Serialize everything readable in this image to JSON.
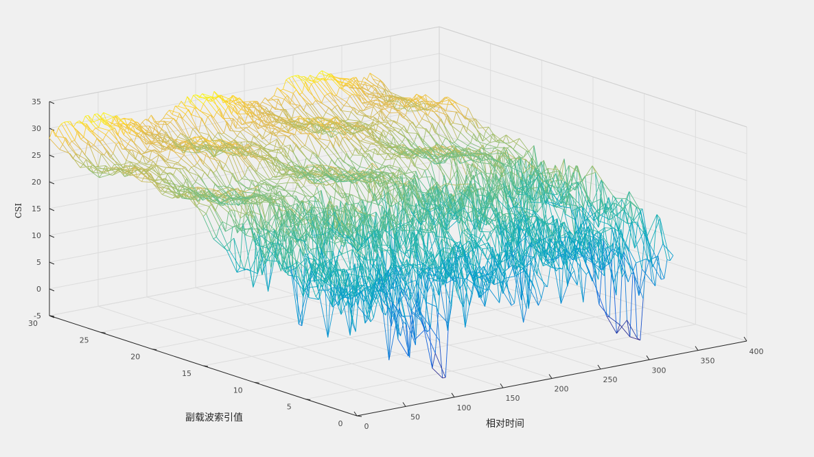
{
  "chart_data": {
    "type": "mesh",
    "xlabel": "相对时间",
    "ylabel": "副载波索引值",
    "zlabel": "CSI",
    "xlim": [
      0,
      400
    ],
    "ylim": [
      0,
      30
    ],
    "zlim": [
      -5,
      35
    ],
    "x_ticks": [
      "0",
      "50",
      "100",
      "150",
      "200",
      "250",
      "300",
      "350",
      "400"
    ],
    "y_ticks": [
      "0",
      "5",
      "10",
      "15",
      "20",
      "25",
      "30"
    ],
    "z_ticks": [
      "-5",
      "0",
      "5",
      "10",
      "15",
      "20",
      "25",
      "30",
      "35"
    ],
    "surface": {
      "x_range": [
        0,
        335
      ],
      "y_range": [
        1,
        30
      ],
      "value_range": [
        -2,
        31
      ],
      "colormap": "parula",
      "description_values": {
        "high_region_csi": 28,
        "low_region_csi": 12,
        "deep_dip_near_x": [
          100,
          300
        ],
        "deep_dip_min_csi": -2
      }
    }
  }
}
